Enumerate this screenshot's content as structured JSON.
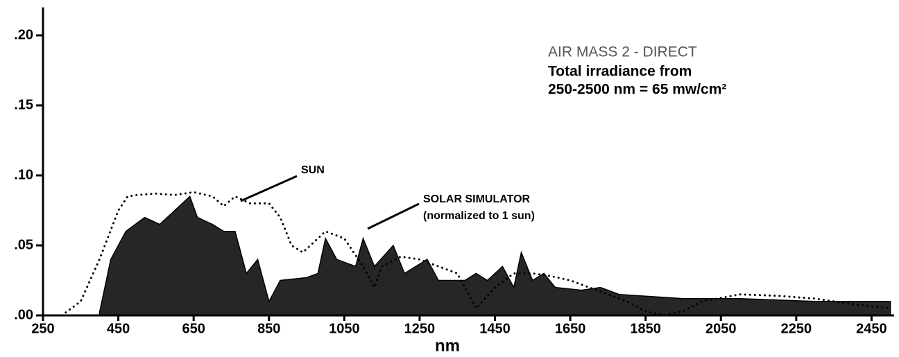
{
  "chart_data": {
    "type": "line",
    "annotations": [
      "AIR MASS 2 - DIRECT",
      "Total irradiance from",
      "250-2500 nm = 65 mw/cm²",
      "SUN",
      "SOLAR SIMULATOR",
      "(normalized to 1 sun)"
    ],
    "xlabel": "nm",
    "xlim": [
      250,
      2510
    ],
    "xticks": [
      250,
      450,
      650,
      850,
      1050,
      1250,
      1450,
      1650,
      1850,
      2050,
      2250,
      2450
    ],
    "ylim": [
      0,
      0.22
    ],
    "yticks": [
      {
        "value": 0,
        "label": ".00"
      },
      {
        "value": 0.05,
        "label": ".05"
      },
      {
        "value": 0.1,
        "label": ".10"
      },
      {
        "value": 0.15,
        "label": ".15"
      },
      {
        "value": 0.2,
        "label": ".20"
      }
    ],
    "series": [
      {
        "name": "SUN",
        "color": "#000000",
        "style": "dotted",
        "x": [
          300,
          350,
          400,
          450,
          475,
          500,
          550,
          600,
          650,
          700,
          730,
          760,
          800,
          850,
          880,
          910,
          940,
          960,
          1000,
          1050,
          1100,
          1130,
          1150,
          1200,
          1250,
          1300,
          1350,
          1400,
          1450,
          1500,
          1550,
          1600,
          1650,
          1700,
          1750,
          1800,
          1850,
          1900,
          1950,
          2000,
          2100,
          2200,
          2300,
          2400,
          2500
        ],
        "values": [
          0.0,
          0.01,
          0.04,
          0.075,
          0.085,
          0.086,
          0.087,
          0.086,
          0.088,
          0.085,
          0.078,
          0.085,
          0.08,
          0.08,
          0.07,
          0.05,
          0.045,
          0.05,
          0.06,
          0.055,
          0.035,
          0.02,
          0.035,
          0.042,
          0.04,
          0.035,
          0.03,
          0.005,
          0.02,
          0.03,
          0.03,
          0.028,
          0.025,
          0.02,
          0.015,
          0.01,
          0.003,
          0.0,
          0.003,
          0.01,
          0.015,
          0.014,
          0.012,
          0.008,
          0.005
        ]
      },
      {
        "name": "SOLAR SIMULATOR",
        "color": "#000000",
        "style": "filled",
        "x": [
          400,
          430,
          470,
          520,
          560,
          600,
          640,
          660,
          700,
          730,
          760,
          790,
          820,
          850,
          880,
          950,
          980,
          1000,
          1030,
          1080,
          1100,
          1130,
          1180,
          1210,
          1270,
          1300,
          1370,
          1400,
          1430,
          1470,
          1500,
          1520,
          1550,
          1580,
          1610,
          1680,
          1730,
          1780,
          1950,
          2100,
          2300,
          2500
        ],
        "values": [
          0.002,
          0.04,
          0.06,
          0.07,
          0.065,
          0.075,
          0.085,
          0.07,
          0.065,
          0.06,
          0.06,
          0.03,
          0.04,
          0.01,
          0.025,
          0.027,
          0.03,
          0.055,
          0.04,
          0.035,
          0.055,
          0.035,
          0.05,
          0.03,
          0.04,
          0.025,
          0.025,
          0.03,
          0.025,
          0.035,
          0.02,
          0.045,
          0.025,
          0.03,
          0.02,
          0.018,
          0.02,
          0.015,
          0.012,
          0.012,
          0.01,
          0.01
        ]
      }
    ]
  }
}
